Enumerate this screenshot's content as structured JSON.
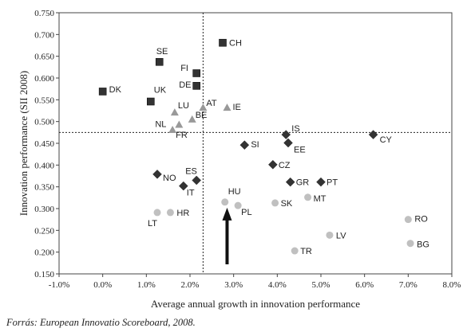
{
  "chart_data": {
    "type": "scatter",
    "xlabel": "Average annual growth in innovation performance",
    "ylabel": "Innovation performance (SII 2008)",
    "xlim": [
      -1.0,
      8.0
    ],
    "ylim": [
      0.15,
      0.75
    ],
    "x_ticks": [
      "-1.0%",
      "0.0%",
      "1.0%",
      "2.0%",
      "3.0%",
      "4.0%",
      "5.0%",
      "6.0%",
      "7.0%",
      "8.0%"
    ],
    "y_ticks": [
      "0.150",
      "0.200",
      "0.250",
      "0.300",
      "0.350",
      "0.400",
      "0.450",
      "0.500",
      "0.550",
      "0.600",
      "0.650",
      "0.700",
      "0.750"
    ],
    "reference_lines": {
      "x": 2.3,
      "y": 0.475
    },
    "grid": false,
    "series": [
      {
        "marker": "square",
        "color": "#333333",
        "points": [
          {
            "label": "CH",
            "x": 2.75,
            "y": 0.681
          },
          {
            "label": "SE",
            "x": 1.3,
            "y": 0.637
          },
          {
            "label": "FI",
            "x": 2.15,
            "y": 0.611
          },
          {
            "label": "DE",
            "x": 2.15,
            "y": 0.582
          },
          {
            "label": "DK",
            "x": 0.0,
            "y": 0.569
          },
          {
            "label": "UK",
            "x": 1.1,
            "y": 0.546
          }
        ]
      },
      {
        "marker": "triangle",
        "color": "#999999",
        "points": [
          {
            "label": "AT",
            "x": 2.3,
            "y": 0.532
          },
          {
            "label": "IE",
            "x": 2.85,
            "y": 0.532
          },
          {
            "label": "LU",
            "x": 1.65,
            "y": 0.521
          },
          {
            "label": "BE",
            "x": 2.05,
            "y": 0.505
          },
          {
            "label": "NL",
            "x": 1.75,
            "y": 0.493
          },
          {
            "label": "FR",
            "x": 1.6,
            "y": 0.481
          }
        ]
      },
      {
        "marker": "diamond",
        "color": "#333333",
        "points": [
          {
            "label": "IS",
            "x": 4.2,
            "y": 0.47
          },
          {
            "label": "CY",
            "x": 6.2,
            "y": 0.47
          },
          {
            "label": "EE",
            "x": 4.25,
            "y": 0.451
          },
          {
            "label": "SI",
            "x": 3.25,
            "y": 0.446
          },
          {
            "label": "CZ",
            "x": 3.9,
            "y": 0.401
          },
          {
            "label": "NO",
            "x": 1.25,
            "y": 0.379
          },
          {
            "label": "ES",
            "x": 2.15,
            "y": 0.365
          },
          {
            "label": "GR",
            "x": 4.3,
            "y": 0.361
          },
          {
            "label": "PT",
            "x": 5.0,
            "y": 0.361
          },
          {
            "label": "IT",
            "x": 1.85,
            "y": 0.352
          }
        ]
      },
      {
        "marker": "circle",
        "color": "#c0c0c0",
        "points": [
          {
            "label": "MT",
            "x": 4.7,
            "y": 0.326
          },
          {
            "label": "HU",
            "x": 2.8,
            "y": 0.315
          },
          {
            "label": "SK",
            "x": 3.95,
            "y": 0.313
          },
          {
            "label": "PL",
            "x": 3.1,
            "y": 0.307
          },
          {
            "label": "HR",
            "x": 1.55,
            "y": 0.291
          },
          {
            "label": "LT",
            "x": 1.25,
            "y": 0.291
          },
          {
            "label": "RO",
            "x": 7.0,
            "y": 0.275
          },
          {
            "label": "LV",
            "x": 5.2,
            "y": 0.239
          },
          {
            "label": "BG",
            "x": 7.05,
            "y": 0.22
          },
          {
            "label": "TR",
            "x": 4.4,
            "y": 0.203
          }
        ]
      }
    ],
    "annotations": [
      {
        "type": "arrow",
        "from": [
          2.85,
          0.172
        ],
        "to": [
          2.85,
          0.302
        ]
      }
    ]
  },
  "source": "Forrás: European Innovatio Scoreboard, 2008."
}
